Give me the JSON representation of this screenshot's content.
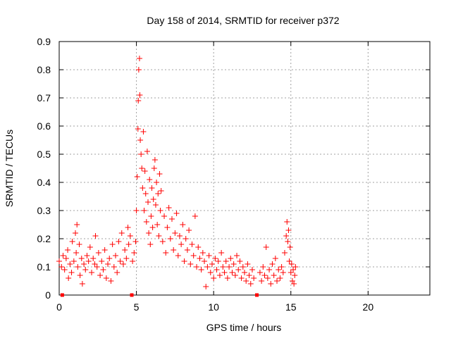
{
  "chart_data": {
    "type": "scatter",
    "title": "Day 158 of 2014, SRMTID for receiver p372",
    "xlabel": "GPS time / hours",
    "ylabel": "SRMTID / TECUs",
    "xlim": [
      0,
      24
    ],
    "ylim": [
      0,
      0.9
    ],
    "xticks": [
      0,
      5,
      10,
      15,
      20
    ],
    "yticks": [
      0,
      0.1,
      0.2,
      0.3,
      0.4,
      0.5,
      0.6,
      0.7,
      0.8,
      0.9
    ],
    "grid": true,
    "marker": "+",
    "color": "#ff0000",
    "data_gap_markers_x": [
      0.2,
      4.7,
      12.8
    ],
    "series": [
      {
        "name": "SRMTID",
        "points": [
          [
            0.0,
            0.12
          ],
          [
            0.15,
            0.1
          ],
          [
            0.25,
            0.14
          ],
          [
            0.35,
            0.09
          ],
          [
            0.45,
            0.13
          ],
          [
            0.55,
            0.16
          ],
          [
            0.6,
            0.06
          ],
          [
            0.7,
            0.11
          ],
          [
            0.8,
            0.08
          ],
          [
            0.85,
            0.19
          ],
          [
            0.95,
            0.12
          ],
          [
            1.05,
            0.22
          ],
          [
            1.1,
            0.15
          ],
          [
            1.15,
            0.25
          ],
          [
            1.2,
            0.1
          ],
          [
            1.3,
            0.18
          ],
          [
            1.35,
            0.07
          ],
          [
            1.45,
            0.13
          ],
          [
            1.5,
            0.04
          ],
          [
            1.6,
            0.11
          ],
          [
            1.7,
            0.09
          ],
          [
            1.8,
            0.14
          ],
          [
            1.9,
            0.12
          ],
          [
            2.0,
            0.17
          ],
          [
            2.1,
            0.08
          ],
          [
            2.2,
            0.13
          ],
          [
            2.3,
            0.11
          ],
          [
            2.35,
            0.21
          ],
          [
            2.45,
            0.1
          ],
          [
            2.55,
            0.15
          ],
          [
            2.65,
            0.07
          ],
          [
            2.75,
            0.12
          ],
          [
            2.85,
            0.09
          ],
          [
            2.95,
            0.16
          ],
          [
            3.05,
            0.06
          ],
          [
            3.15,
            0.11
          ],
          [
            3.25,
            0.13
          ],
          [
            3.35,
            0.05
          ],
          [
            3.45,
            0.18
          ],
          [
            3.55,
            0.1
          ],
          [
            3.65,
            0.14
          ],
          [
            3.75,
            0.08
          ],
          [
            3.85,
            0.19
          ],
          [
            3.95,
            0.12
          ],
          [
            4.05,
            0.22
          ],
          [
            4.15,
            0.11
          ],
          [
            4.25,
            0.16
          ],
          [
            4.35,
            0.13
          ],
          [
            4.45,
            0.24
          ],
          [
            4.5,
            0.18
          ],
          [
            4.6,
            0.21
          ],
          [
            4.75,
            0.12
          ],
          [
            4.85,
            0.15
          ],
          [
            4.95,
            0.19
          ],
          [
            5.0,
            0.3
          ],
          [
            5.05,
            0.42
          ],
          [
            5.1,
            0.59
          ],
          [
            5.12,
            0.69
          ],
          [
            5.15,
            0.8
          ],
          [
            5.2,
            0.84
          ],
          [
            5.22,
            0.71
          ],
          [
            5.25,
            0.55
          ],
          [
            5.3,
            0.5
          ],
          [
            5.35,
            0.45
          ],
          [
            5.4,
            0.38
          ],
          [
            5.45,
            0.58
          ],
          [
            5.5,
            0.3
          ],
          [
            5.55,
            0.44
          ],
          [
            5.6,
            0.36
          ],
          [
            5.65,
            0.26
          ],
          [
            5.7,
            0.51
          ],
          [
            5.75,
            0.33
          ],
          [
            5.8,
            0.22
          ],
          [
            5.85,
            0.41
          ],
          [
            5.9,
            0.18
          ],
          [
            5.95,
            0.28
          ],
          [
            6.0,
            0.38
          ],
          [
            6.05,
            0.24
          ],
          [
            6.1,
            0.34
          ],
          [
            6.15,
            0.45
          ],
          [
            6.2,
            0.48
          ],
          [
            6.25,
            0.32
          ],
          [
            6.3,
            0.4
          ],
          [
            6.35,
            0.25
          ],
          [
            6.4,
            0.36
          ],
          [
            6.45,
            0.21
          ],
          [
            6.5,
            0.43
          ],
          [
            6.55,
            0.3
          ],
          [
            6.6,
            0.37
          ],
          [
            6.7,
            0.19
          ],
          [
            6.8,
            0.28
          ],
          [
            6.9,
            0.15
          ],
          [
            7.0,
            0.24
          ],
          [
            7.1,
            0.31
          ],
          [
            7.2,
            0.2
          ],
          [
            7.3,
            0.27
          ],
          [
            7.4,
            0.16
          ],
          [
            7.5,
            0.22
          ],
          [
            7.6,
            0.29
          ],
          [
            7.7,
            0.14
          ],
          [
            7.8,
            0.21
          ],
          [
            7.9,
            0.18
          ],
          [
            8.0,
            0.25
          ],
          [
            8.1,
            0.12
          ],
          [
            8.2,
            0.2
          ],
          [
            8.3,
            0.16
          ],
          [
            8.4,
            0.23
          ],
          [
            8.5,
            0.11
          ],
          [
            8.6,
            0.18
          ],
          [
            8.7,
            0.14
          ],
          [
            8.8,
            0.28
          ],
          [
            8.9,
            0.1
          ],
          [
            9.0,
            0.17
          ],
          [
            9.1,
            0.13
          ],
          [
            9.2,
            0.09
          ],
          [
            9.3,
            0.15
          ],
          [
            9.4,
            0.12
          ],
          [
            9.5,
            0.03
          ],
          [
            9.6,
            0.1
          ],
          [
            9.7,
            0.14
          ],
          [
            9.8,
            0.08
          ],
          [
            9.9,
            0.11
          ],
          [
            10.0,
            0.06
          ],
          [
            10.1,
            0.13
          ],
          [
            10.2,
            0.09
          ],
          [
            10.3,
            0.12
          ],
          [
            10.4,
            0.07
          ],
          [
            10.5,
            0.15
          ],
          [
            10.6,
            0.1
          ],
          [
            10.7,
            0.08
          ],
          [
            10.8,
            0.12
          ],
          [
            10.9,
            0.06
          ],
          [
            11.0,
            0.1
          ],
          [
            11.1,
            0.13
          ],
          [
            11.2,
            0.08
          ],
          [
            11.3,
            0.11
          ],
          [
            11.4,
            0.07
          ],
          [
            11.5,
            0.14
          ],
          [
            11.6,
            0.09
          ],
          [
            11.7,
            0.12
          ],
          [
            11.8,
            0.06
          ],
          [
            11.9,
            0.1
          ],
          [
            12.0,
            0.08
          ],
          [
            12.1,
            0.05
          ],
          [
            12.2,
            0.11
          ],
          [
            12.3,
            0.07
          ],
          [
            12.4,
            0.04
          ],
          [
            12.5,
            0.09
          ],
          [
            12.6,
            0.06
          ],
          [
            13.0,
            0.08
          ],
          [
            13.1,
            0.05
          ],
          [
            13.2,
            0.1
          ],
          [
            13.3,
            0.07
          ],
          [
            13.4,
            0.17
          ],
          [
            13.5,
            0.06
          ],
          [
            13.6,
            0.09
          ],
          [
            13.7,
            0.04
          ],
          [
            13.8,
            0.11
          ],
          [
            13.9,
            0.07
          ],
          [
            14.0,
            0.13
          ],
          [
            14.1,
            0.05
          ],
          [
            14.2,
            0.09
          ],
          [
            14.3,
            0.06
          ],
          [
            14.4,
            0.1
          ],
          [
            14.5,
            0.08
          ],
          [
            14.6,
            0.15
          ],
          [
            14.7,
            0.21
          ],
          [
            14.75,
            0.26
          ],
          [
            14.8,
            0.19
          ],
          [
            14.85,
            0.23
          ],
          [
            14.9,
            0.12
          ],
          [
            14.95,
            0.17
          ],
          [
            15.0,
            0.08
          ],
          [
            15.05,
            0.11
          ],
          [
            15.1,
            0.05
          ],
          [
            15.15,
            0.09
          ],
          [
            15.2,
            0.04
          ],
          [
            15.25,
            0.07
          ],
          [
            15.3,
            0.1
          ]
        ]
      }
    ]
  }
}
